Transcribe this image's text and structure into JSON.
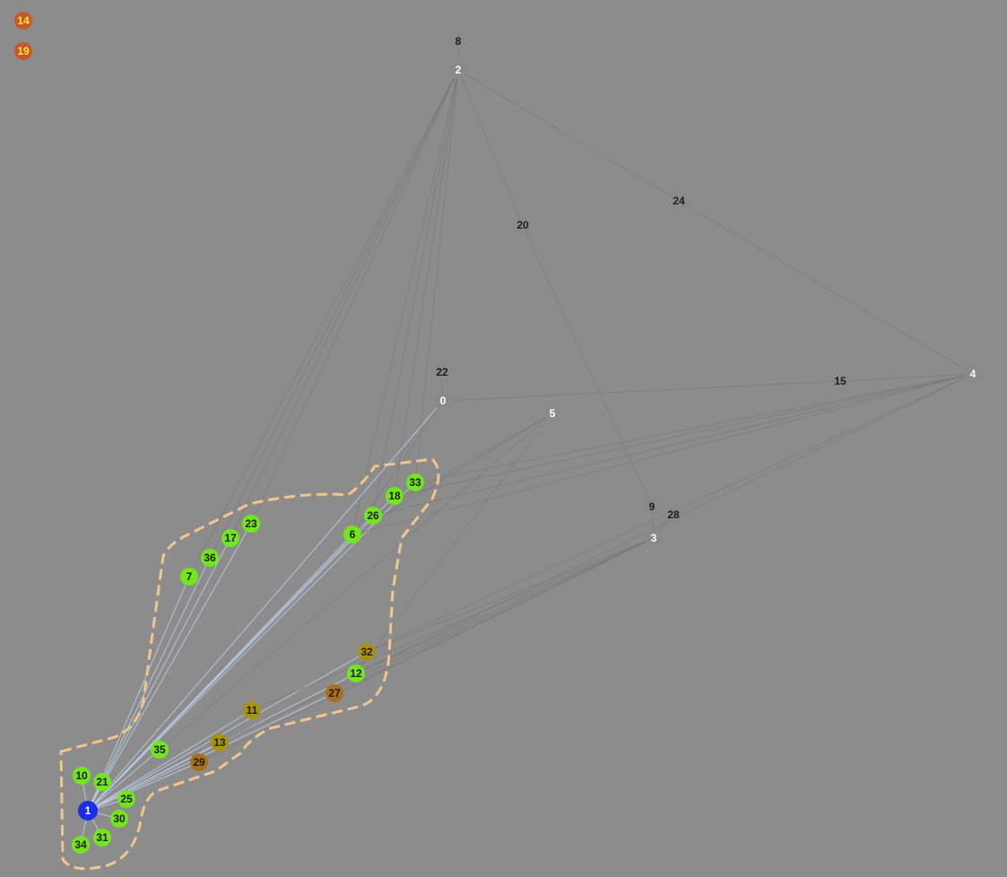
{
  "colors": {
    "background": "#8c8c8c",
    "edge_gray": "#777777",
    "edge_blue": "#b9cbe3",
    "hull_stroke": "#f2c48e",
    "node_green": "#72e61c",
    "node_gray": "#8a8a8a",
    "node_blue": "#1a2ee8",
    "node_olive": "#a9920e",
    "node_brown": "#a87018",
    "node_red": "#c8582b",
    "label_dark": "#1c1c1c",
    "label_white": "#ffffff",
    "label_yellow": "#ffe93a"
  },
  "graph": {
    "nodes": [
      {
        "id": "0",
        "label": "0",
        "kind": "gray-white"
      },
      {
        "id": "1",
        "label": "1",
        "kind": "blue"
      },
      {
        "id": "2",
        "label": "2",
        "kind": "gray-white"
      },
      {
        "id": "3",
        "label": "3",
        "kind": "gray-white"
      },
      {
        "id": "4",
        "label": "4",
        "kind": "gray-white"
      },
      {
        "id": "5",
        "label": "5",
        "kind": "gray-white"
      },
      {
        "id": "6",
        "label": "6",
        "kind": "green"
      },
      {
        "id": "7",
        "label": "7",
        "kind": "green"
      },
      {
        "id": "8",
        "label": "8",
        "kind": "gray-dark"
      },
      {
        "id": "9",
        "label": "9",
        "kind": "gray-dark"
      },
      {
        "id": "10",
        "label": "10",
        "kind": "green"
      },
      {
        "id": "11",
        "label": "11",
        "kind": "olive"
      },
      {
        "id": "12",
        "label": "12",
        "kind": "green"
      },
      {
        "id": "13",
        "label": "13",
        "kind": "olive"
      },
      {
        "id": "14",
        "label": "14",
        "kind": "red"
      },
      {
        "id": "15",
        "label": "15",
        "kind": "gray-dark"
      },
      {
        "id": "17",
        "label": "17",
        "kind": "green"
      },
      {
        "id": "18",
        "label": "18",
        "kind": "green"
      },
      {
        "id": "19",
        "label": "19",
        "kind": "red"
      },
      {
        "id": "20",
        "label": "20",
        "kind": "gray-dark"
      },
      {
        "id": "21",
        "label": "21",
        "kind": "green"
      },
      {
        "id": "22",
        "label": "22",
        "kind": "gray-dark"
      },
      {
        "id": "23",
        "label": "23",
        "kind": "green"
      },
      {
        "id": "24",
        "label": "24",
        "kind": "gray-dark"
      },
      {
        "id": "25",
        "label": "25",
        "kind": "green"
      },
      {
        "id": "26",
        "label": "26",
        "kind": "green"
      },
      {
        "id": "27",
        "label": "27",
        "kind": "brown"
      },
      {
        "id": "28",
        "label": "28",
        "kind": "gray-dark"
      },
      {
        "id": "29",
        "label": "29",
        "kind": "brown"
      },
      {
        "id": "30",
        "label": "30",
        "kind": "green"
      },
      {
        "id": "31",
        "label": "31",
        "kind": "green"
      },
      {
        "id": "32",
        "label": "32",
        "kind": "olive"
      },
      {
        "id": "33",
        "label": "33",
        "kind": "green"
      },
      {
        "id": "34",
        "label": "34",
        "kind": "green"
      },
      {
        "id": "35",
        "label": "35",
        "kind": "green"
      },
      {
        "id": "36",
        "label": "36",
        "kind": "green"
      }
    ],
    "edges": [
      [
        "8",
        "2"
      ],
      [
        "2",
        "24"
      ],
      [
        "24",
        "4"
      ],
      [
        "2",
        "20"
      ],
      [
        "20",
        "9"
      ],
      [
        "0",
        "15"
      ],
      [
        "15",
        "4"
      ],
      [
        "22",
        "0"
      ],
      [
        "9",
        "3"
      ],
      [
        "3",
        "28"
      ],
      [
        "1",
        "10"
      ],
      [
        "1",
        "21"
      ],
      [
        "1",
        "25"
      ],
      [
        "1",
        "30"
      ],
      [
        "1",
        "31"
      ],
      [
        "1",
        "34"
      ],
      [
        "1",
        "35"
      ],
      [
        "1",
        "7"
      ],
      [
        "1",
        "36"
      ],
      [
        "1",
        "17"
      ],
      [
        "1",
        "23"
      ],
      [
        "1",
        "6"
      ],
      [
        "1",
        "26"
      ],
      [
        "1",
        "18"
      ],
      [
        "1",
        "33"
      ],
      [
        "1",
        "29"
      ],
      [
        "1",
        "13"
      ],
      [
        "1",
        "11"
      ],
      [
        "1",
        "27"
      ],
      [
        "1",
        "12"
      ],
      [
        "1",
        "32"
      ],
      [
        "2",
        "7"
      ],
      [
        "2",
        "36"
      ],
      [
        "2",
        "17"
      ],
      [
        "2",
        "23"
      ],
      [
        "2",
        "6"
      ],
      [
        "2",
        "26"
      ],
      [
        "2",
        "18"
      ],
      [
        "2",
        "33"
      ],
      [
        "4",
        "33"
      ],
      [
        "4",
        "18"
      ],
      [
        "4",
        "26"
      ],
      [
        "4",
        "6"
      ],
      [
        "4",
        "32"
      ],
      [
        "4",
        "12"
      ],
      [
        "3",
        "32"
      ],
      [
        "3",
        "12"
      ],
      [
        "3",
        "27"
      ],
      [
        "3",
        "11"
      ],
      [
        "3",
        "13"
      ],
      [
        "3",
        "29"
      ],
      [
        "5",
        "35"
      ],
      [
        "5",
        "6"
      ],
      [
        "5",
        "26"
      ],
      [
        "5",
        "12"
      ],
      [
        "0",
        "1"
      ],
      [
        "0",
        "6"
      ]
    ]
  }
}
